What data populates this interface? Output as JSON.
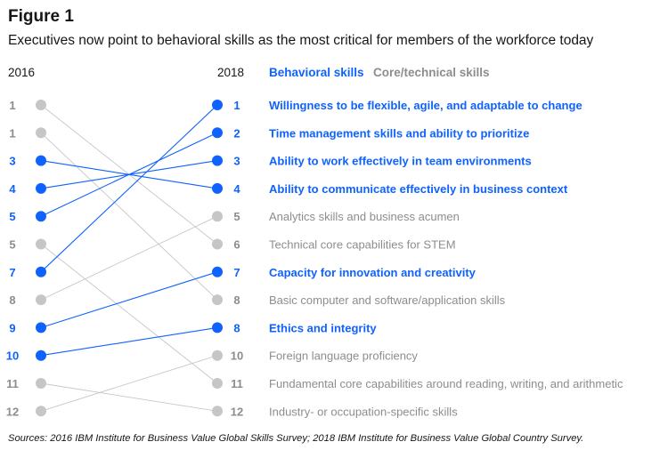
{
  "figure": {
    "title": "Figure 1",
    "subtitle": "Executives now point to behavioral skills as the most critical for members of the workforce today",
    "source": "Sources: 2016 IBM Institute for Business Value Global Skills Survey; 2018 IBM Institute for Business Value Global Country Survey."
  },
  "colors": {
    "behavioral": "#0f62fe",
    "core": "#a8a8a8",
    "rank_core": "#8d8d8d",
    "text_core": "#8d8d8d"
  },
  "chart_data": {
    "type": "slope",
    "title": "Figure 1",
    "left_label": "2016",
    "right_label": "2018",
    "legend": [
      "Behavioral skills",
      "Core/technical skills"
    ],
    "rows_2016": [
      "1",
      "1",
      "3",
      "4",
      "5",
      "5",
      "7",
      "8",
      "9",
      "10",
      "11",
      "12"
    ],
    "skills": [
      {
        "name": "Willingness to be flexible, agile, and adaptable to change",
        "category": "behavioral",
        "rank_2018": "1",
        "row_2016": 6
      },
      {
        "name": "Time management skills and ability to prioritize",
        "category": "behavioral",
        "rank_2018": "2",
        "row_2016": 4
      },
      {
        "name": "Ability to work effectively in team environments",
        "category": "behavioral",
        "rank_2018": "3",
        "row_2016": 3
      },
      {
        "name": "Ability to communicate effectively in business context",
        "category": "behavioral",
        "rank_2018": "4",
        "row_2016": 2
      },
      {
        "name": "Analytics skills and business acumen",
        "category": "core",
        "rank_2018": "5",
        "row_2016": 7
      },
      {
        "name": "Technical core capabilities for STEM",
        "category": "core",
        "rank_2018": "6",
        "row_2016": 0
      },
      {
        "name": "Capacity for innovation and creativity",
        "category": "behavioral",
        "rank_2018": "7",
        "row_2016": 8
      },
      {
        "name": "Basic computer and software/application skills",
        "category": "core",
        "rank_2018": "8",
        "row_2016": 1
      },
      {
        "name": "Ethics and integrity",
        "category": "behavioral",
        "rank_2018": "8",
        "row_2016": 9
      },
      {
        "name": "Foreign language proficiency",
        "category": "core",
        "rank_2018": "10",
        "row_2016": 11
      },
      {
        "name": "Fundamental core capabilities around reading, writing, and arithmetic",
        "category": "core",
        "rank_2018": "11",
        "row_2016": 5
      },
      {
        "name": "Industry- or occupation-specific skills",
        "category": "core",
        "rank_2018": "12",
        "row_2016": 10
      }
    ]
  }
}
